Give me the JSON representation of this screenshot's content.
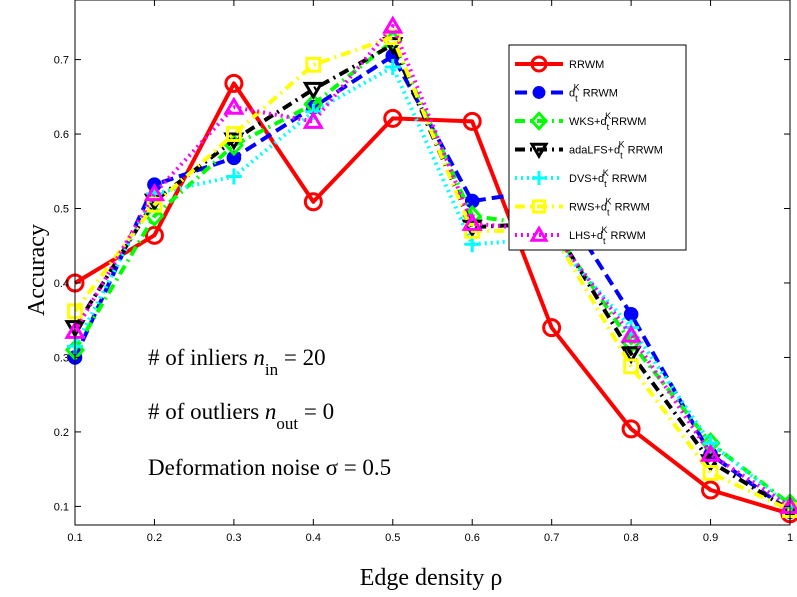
{
  "chart_data": {
    "type": "line",
    "title": "",
    "xlabel": "Edge density ρ",
    "ylabel": "Accuracy",
    "xlim": [
      0.1,
      1.0
    ],
    "ylim": [
      0.075,
      0.78
    ],
    "x": [
      0.1,
      0.2,
      0.3,
      0.4,
      0.5,
      0.6,
      0.7,
      0.8,
      0.9,
      1.0
    ],
    "xticks": [
      "0.1",
      "0.2",
      "0.3",
      "0.4",
      "0.5",
      "0.6",
      "0.7",
      "0.8",
      "0.9",
      "1"
    ],
    "yticks": [
      "0.1",
      "0.2",
      "0.3",
      "0.4",
      "0.5",
      "0.6",
      "0.7"
    ],
    "ytick_values": [
      0.1,
      0.2,
      0.3,
      0.4,
      0.5,
      0.6,
      0.7
    ],
    "grid": false,
    "legend_position": "top-right",
    "series": [
      {
        "name": "RRWM",
        "legend": {
          "prefix": "RRWM",
          "sup": "",
          "sub": "",
          "suffix": ""
        },
        "color": "#ff0000",
        "dash": "solid",
        "marker": "circle",
        "values": [
          0.4,
          0.464,
          0.668,
          0.509,
          0.621,
          0.617,
          0.34,
          0.204,
          0.122,
          0.09
        ]
      },
      {
        "name": "d_t^K RRWM",
        "legend": {
          "prefix": "d",
          "sup": "K",
          "sub": "t",
          "suffix": " RRWM"
        },
        "color": "#0000ff",
        "dash": "dashed",
        "marker": "dot",
        "values": [
          0.3,
          0.532,
          0.568,
          0.636,
          0.705,
          0.51,
          0.526,
          0.358,
          0.17,
          0.093
        ]
      },
      {
        "name": "WKS+d_t^K RRWM",
        "legend": {
          "prefix": "WKS+d",
          "sup": "K",
          "sub": "t",
          "suffix": "RRWM"
        },
        "color": "#00ff00",
        "dash": "dashdot",
        "marker": "diamond",
        "values": [
          0.31,
          0.49,
          0.585,
          0.64,
          0.725,
          0.49,
          0.475,
          0.32,
          0.185,
          0.103
        ]
      },
      {
        "name": "adaLFS+d_t^K RRWM",
        "legend": {
          "prefix": "adaLFS+d",
          "sup": "K",
          "sub": "t",
          "suffix": " RRWM"
        },
        "color": "#000000",
        "dash": "dashdot",
        "marker": "triangle-down",
        "values": [
          0.34,
          0.51,
          0.592,
          0.66,
          0.72,
          0.475,
          0.48,
          0.305,
          0.16,
          0.095
        ]
      },
      {
        "name": "DVS+d_t^K RRWM",
        "legend": {
          "prefix": "DVS+d",
          "sup": "K",
          "sub": "t",
          "suffix": " RRWM"
        },
        "color": "#00ffff",
        "dash": "dotted",
        "marker": "plus",
        "values": [
          0.315,
          0.52,
          0.543,
          0.63,
          0.69,
          0.452,
          0.46,
          0.34,
          0.185,
          0.1
        ]
      },
      {
        "name": "RWS+d_t^K RRWM",
        "legend": {
          "prefix": "RWS+d",
          "sup": "K",
          "sub": "t",
          "suffix": " RRWM"
        },
        "color": "#ffff00",
        "dash": "dashdot",
        "marker": "square",
        "values": [
          0.362,
          0.505,
          0.6,
          0.693,
          0.73,
          0.47,
          0.47,
          0.288,
          0.145,
          0.095
        ]
      },
      {
        "name": "LHS+d_t^K RRWM",
        "legend": {
          "prefix": "LHS+d",
          "sup": "K",
          "sub": "t",
          "suffix": " RRWM"
        },
        "color": "#ff00ff",
        "dash": "dotted",
        "marker": "triangle-up",
        "values": [
          0.335,
          0.52,
          0.636,
          0.617,
          0.745,
          0.48,
          0.47,
          0.33,
          0.17,
          0.1
        ]
      }
    ],
    "annotations": [
      {
        "prefix": "# of inliers ",
        "var": "n",
        "sub": "in",
        "suffix": " = 20"
      },
      {
        "prefix": "# of outliers ",
        "var": "n",
        "sub": "out",
        "suffix": " = 0"
      },
      {
        "prefix": "Deformation noise σ = 0.5",
        "var": "",
        "sub": "",
        "suffix": ""
      }
    ]
  }
}
